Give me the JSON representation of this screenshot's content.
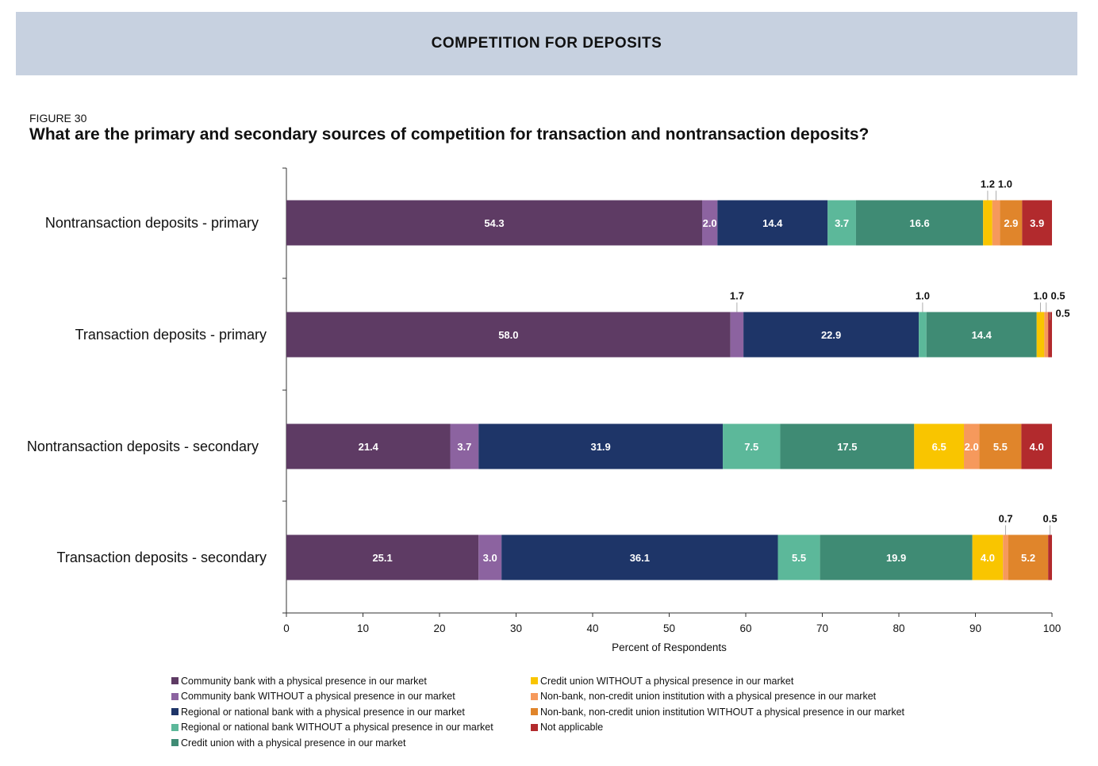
{
  "header": {
    "banner": "COMPETITION FOR DEPOSITS"
  },
  "figure": {
    "label": "FIGURE 30",
    "title": "What are the primary and secondary sources of competition for transaction and nontransaction deposits?"
  },
  "chart_data": {
    "type": "bar",
    "orientation": "horizontal",
    "stacked": true,
    "xlabel": "Percent of Respondents",
    "xlim": [
      0,
      100
    ],
    "xticks": [
      0,
      10,
      20,
      30,
      40,
      50,
      60,
      70,
      80,
      90,
      100
    ],
    "categories": [
      "Nontransaction deposits - primary",
      "Transaction deposits - primary",
      "Nontransaction deposits - secondary",
      "Transaction deposits - secondary"
    ],
    "series": [
      {
        "name": "Community bank with a physical presence in our market",
        "color": "#5e3b64",
        "values": [
          54.3,
          58.0,
          21.4,
          25.1
        ],
        "labels": [
          "54.3",
          "58.0",
          "21.4",
          "25.1"
        ]
      },
      {
        "name": "Community bank WITHOUT a physical presence in our market",
        "color": "#8c63a0",
        "values": [
          2.0,
          1.7,
          3.7,
          3.0
        ],
        "labels": [
          "2.0",
          "1.7",
          "3.7",
          "3.0"
        ]
      },
      {
        "name": "Regional or national bank with a physical presence in our market",
        "color": "#1e3568",
        "values": [
          14.4,
          22.9,
          31.9,
          36.1
        ],
        "labels": [
          "14.4",
          "22.9",
          "31.9",
          "36.1"
        ]
      },
      {
        "name": "Regional or national bank WITHOUT a physical presence in our market",
        "color": "#5cb89a",
        "values": [
          3.7,
          1.0,
          7.5,
          5.5
        ],
        "labels": [
          "3.7",
          "1.0",
          "7.5",
          "5.5"
        ]
      },
      {
        "name": "Credit union with a physical presence in our market",
        "color": "#3f8b74",
        "values": [
          16.6,
          14.4,
          17.5,
          19.9
        ],
        "labels": [
          "16.6",
          "14.4",
          "17.5",
          "19.9"
        ]
      },
      {
        "name": "Credit union WITHOUT a physical presence in our market",
        "color": "#f9c500",
        "values": [
          1.2,
          1.0,
          6.5,
          4.0
        ],
        "labels": [
          "1.2",
          "1.0",
          "6.5",
          "4.0"
        ]
      },
      {
        "name": "Non-bank, non-credit union institution with a physical presence in our market",
        "color": "#f6995c",
        "values": [
          1.0,
          0.5,
          2.0,
          0.7
        ],
        "labels": [
          "1.0",
          "0.5",
          "2.0",
          "0.7"
        ]
      },
      {
        "name": "Non-bank, non-credit union institution WITHOUT a physical presence in our market",
        "color": "#e0852b",
        "values": [
          2.9,
          0.0,
          5.5,
          5.2
        ],
        "labels": [
          "2.9",
          "",
          "5.5",
          "5.2"
        ]
      },
      {
        "name": "Not applicable",
        "color": "#b22a2d",
        "values": [
          3.9,
          0.5,
          4.0,
          0.5
        ],
        "labels": [
          "3.9",
          "0.5",
          "4.0",
          "0.5"
        ]
      }
    ]
  }
}
